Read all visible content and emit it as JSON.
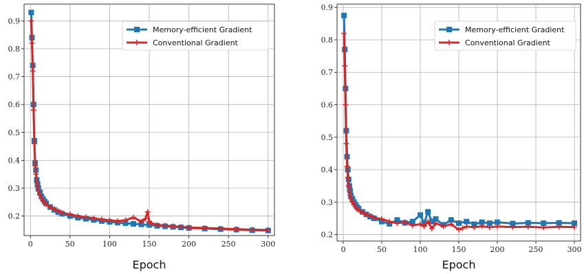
{
  "chart_data": [
    {
      "type": "line",
      "xlabel": "Epoch",
      "ylabel": "",
      "xlim": [
        -8,
        308
      ],
      "ylim": [
        0.13,
        0.96
      ],
      "xticks": [
        0,
        50,
        100,
        150,
        200,
        250,
        300
      ],
      "yticks": [
        0.2,
        0.3,
        0.4,
        0.5,
        0.6,
        0.7,
        0.8,
        0.9
      ],
      "grid": true,
      "legend_position": "top-right",
      "series": [
        {
          "name": "Memory-efficient Gradient",
          "color": "#1f77b4",
          "marker": "square",
          "x": [
            1,
            2,
            3,
            4,
            5,
            6,
            7,
            8,
            9,
            10,
            12,
            14,
            16,
            18,
            20,
            25,
            30,
            35,
            40,
            50,
            60,
            70,
            80,
            90,
            100,
            110,
            120,
            130,
            140,
            150,
            160,
            170,
            180,
            190,
            200,
            220,
            240,
            260,
            280,
            300
          ],
          "values": [
            0.93,
            0.84,
            0.74,
            0.6,
            0.47,
            0.39,
            0.365,
            0.33,
            0.315,
            0.3,
            0.285,
            0.27,
            0.26,
            0.252,
            0.245,
            0.232,
            0.222,
            0.214,
            0.208,
            0.2,
            0.194,
            0.19,
            0.186,
            0.182,
            0.179,
            0.176,
            0.174,
            0.172,
            0.17,
            0.168,
            0.165,
            0.163,
            0.161,
            0.159,
            0.157,
            0.155,
            0.153,
            0.151,
            0.149,
            0.148
          ]
        },
        {
          "name": "Conventional Gradient",
          "color": "#d62728",
          "marker": "plus",
          "x": [
            1,
            2,
            3,
            4,
            5,
            6,
            7,
            8,
            9,
            10,
            12,
            14,
            16,
            18,
            20,
            25,
            30,
            35,
            40,
            50,
            60,
            70,
            80,
            90,
            100,
            110,
            120,
            130,
            140,
            145,
            148,
            150,
            152,
            160,
            170,
            180,
            190,
            200,
            220,
            240,
            260,
            280,
            300
          ],
          "values": [
            0.9,
            0.82,
            0.72,
            0.58,
            0.46,
            0.38,
            0.35,
            0.32,
            0.305,
            0.29,
            0.275,
            0.262,
            0.255,
            0.248,
            0.242,
            0.232,
            0.225,
            0.218,
            0.212,
            0.206,
            0.2,
            0.196,
            0.192,
            0.188,
            0.185,
            0.182,
            0.185,
            0.195,
            0.18,
            0.19,
            0.215,
            0.18,
            0.175,
            0.168,
            0.166,
            0.163,
            0.161,
            0.159,
            0.157,
            0.155,
            0.153,
            0.151,
            0.15
          ]
        }
      ]
    },
    {
      "type": "line",
      "xlabel": "Epoch",
      "ylabel": "",
      "xlim": [
        -8,
        308
      ],
      "ylim": [
        0.18,
        0.91
      ],
      "xticks": [
        0,
        50,
        100,
        150,
        200,
        250,
        300
      ],
      "yticks": [
        0.2,
        0.3,
        0.4,
        0.5,
        0.6,
        0.7,
        0.8,
        0.9
      ],
      "grid": true,
      "legend_position": "top-right",
      "series": [
        {
          "name": "Memory-efficient Gradient",
          "color": "#1f77b4",
          "marker": "square",
          "x": [
            1,
            2,
            3,
            4,
            5,
            6,
            7,
            8,
            9,
            10,
            12,
            14,
            16,
            18,
            20,
            25,
            30,
            35,
            40,
            50,
            60,
            70,
            80,
            90,
            100,
            105,
            110,
            115,
            120,
            130,
            140,
            150,
            160,
            170,
            180,
            190,
            200,
            220,
            240,
            260,
            280,
            300
          ],
          "values": [
            0.875,
            0.77,
            0.65,
            0.52,
            0.44,
            0.4,
            0.37,
            0.35,
            0.335,
            0.32,
            0.31,
            0.3,
            0.292,
            0.285,
            0.28,
            0.27,
            0.262,
            0.255,
            0.25,
            0.24,
            0.233,
            0.245,
            0.236,
            0.24,
            0.26,
            0.235,
            0.27,
            0.24,
            0.248,
            0.23,
            0.245,
            0.235,
            0.24,
            0.232,
            0.238,
            0.235,
            0.238,
            0.234,
            0.236,
            0.235,
            0.236,
            0.235
          ]
        },
        {
          "name": "Conventional Gradient",
          "color": "#d62728",
          "marker": "plus",
          "x": [
            1,
            2,
            3,
            4,
            5,
            6,
            7,
            8,
            9,
            10,
            12,
            14,
            16,
            18,
            20,
            25,
            30,
            35,
            40,
            50,
            60,
            70,
            80,
            90,
            100,
            105,
            110,
            115,
            120,
            130,
            140,
            150,
            155,
            160,
            170,
            180,
            190,
            200,
            220,
            240,
            260,
            280,
            300
          ],
          "values": [
            0.82,
            0.72,
            0.6,
            0.48,
            0.41,
            0.375,
            0.35,
            0.335,
            0.32,
            0.31,
            0.3,
            0.292,
            0.285,
            0.28,
            0.275,
            0.268,
            0.262,
            0.258,
            0.252,
            0.248,
            0.24,
            0.235,
            0.238,
            0.228,
            0.232,
            0.225,
            0.24,
            0.218,
            0.235,
            0.225,
            0.232,
            0.215,
            0.22,
            0.225,
            0.222,
            0.226,
            0.222,
            0.225,
            0.223,
            0.224,
            0.222,
            0.224,
            0.223
          ]
        }
      ]
    }
  ]
}
